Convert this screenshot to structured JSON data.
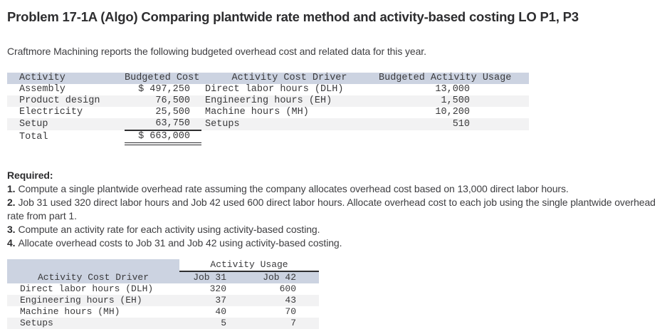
{
  "page": {
    "title": "Problem 17-1A (Algo) Comparing plantwide rate method and activity-based costing LO P1, P3",
    "intro": "Craftmore Machining reports the following budgeted overhead cost and related data for this year."
  },
  "overhead_table": {
    "headers": [
      "Activity",
      "Budgeted Cost",
      "Activity Cost Driver",
      "Budgeted Activity Usage"
    ],
    "rows": [
      {
        "activity": "Assembly",
        "cost": "$ 497,250",
        "driver": "Direct labor hours (DLH)",
        "usage": "13,000"
      },
      {
        "activity": "Product design",
        "cost": "76,500",
        "driver": "Engineering hours (EH)",
        "usage": "1,500"
      },
      {
        "activity": "Electricity",
        "cost": "25,500",
        "driver": "Machine hours (MH)",
        "usage": "10,200"
      },
      {
        "activity": "Setup",
        "cost": "63,750",
        "driver": "Setups",
        "usage": "510"
      }
    ],
    "total": {
      "label": "Total",
      "cost": "$ 663,000"
    }
  },
  "required": {
    "label": "Required:",
    "items": [
      {
        "num": "1.",
        "text": "Compute a single plantwide overhead rate assuming the company allocates overhead cost based on 13,000 direct labor hours."
      },
      {
        "num": "2.",
        "text": "Job 31 used 320 direct labor hours and Job 42 used 600 direct labor hours. Allocate overhead cost to each job using the single plantwide overhead rate from part 1."
      },
      {
        "num": "3.",
        "text": "Compute an activity rate for each activity using activity-based costing."
      },
      {
        "num": "4.",
        "text": "Allocate overhead costs to Job 31 and Job 42 using activity-based costing."
      }
    ]
  },
  "usage_table": {
    "group_header": "Activity Usage",
    "col_headers": [
      "Activity Cost Driver",
      "Job 31",
      "Job 42"
    ],
    "rows": [
      {
        "driver": "Direct labor hours (DLH)",
        "job31": "320",
        "job42": "600"
      },
      {
        "driver": "Engineering hours (EH)",
        "job31": "37",
        "job42": "43"
      },
      {
        "driver": "Machine hours (MH)",
        "job31": "40",
        "job42": "70"
      },
      {
        "driver": "Setups",
        "job31": "5",
        "job42": "7"
      }
    ]
  },
  "colors": {
    "table_header_bg": "#ccd3e1",
    "row_alt_bg": "#f2f2f3",
    "rule_color": "#2e2e30",
    "text_color": "#3e3e41"
  }
}
